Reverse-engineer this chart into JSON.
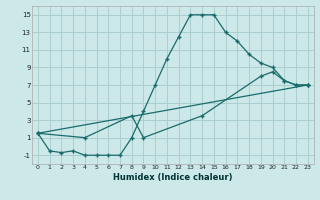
{
  "xlabel": "Humidex (Indice chaleur)",
  "bg_color": "#cce8e8",
  "grid_color": "#aacfcf",
  "line_color": "#1a6b6b",
  "line1_x": [
    0,
    1,
    2,
    3,
    4,
    5,
    6,
    7,
    8,
    9,
    10,
    11,
    12,
    13,
    14,
    15,
    16,
    17,
    18,
    19,
    20,
    21,
    22,
    23
  ],
  "line1_y": [
    1.5,
    -0.5,
    -0.7,
    -0.5,
    -1.0,
    -1.0,
    -1.0,
    -1.0,
    1.0,
    4.0,
    7.0,
    10.0,
    12.5,
    15.0,
    15.0,
    15.0,
    13.0,
    12.0,
    10.5,
    9.5,
    9.0,
    7.5,
    7.0,
    7.0
  ],
  "line2_x": [
    0,
    23
  ],
  "line2_y": [
    1.5,
    7.0
  ],
  "line3_x": [
    0,
    4,
    8,
    9,
    14,
    19,
    20,
    21,
    22,
    23
  ],
  "line3_y": [
    1.5,
    1.0,
    3.5,
    1.0,
    3.5,
    8.0,
    8.5,
    7.5,
    7.0,
    7.0
  ],
  "ylim": [
    -2,
    16
  ],
  "xlim": [
    -0.5,
    23.5
  ],
  "yticks": [
    -1,
    1,
    3,
    5,
    7,
    9,
    11,
    13,
    15
  ],
  "xticks": [
    0,
    1,
    2,
    3,
    4,
    5,
    6,
    7,
    8,
    9,
    10,
    11,
    12,
    13,
    14,
    15,
    16,
    17,
    18,
    19,
    20,
    21,
    22,
    23
  ]
}
